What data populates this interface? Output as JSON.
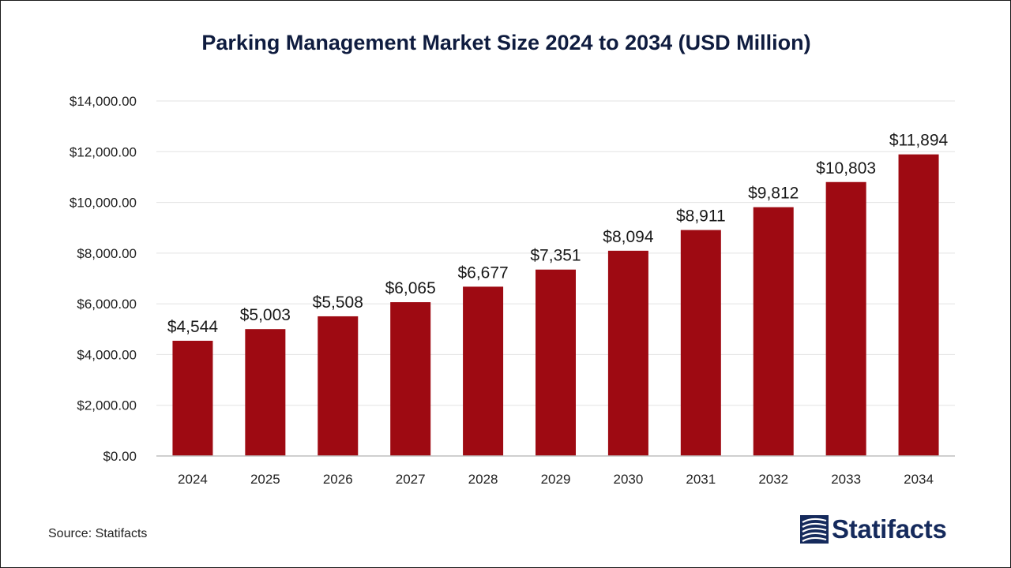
{
  "title": "Parking Management Market Size 2024 to 2034 (USD Million)",
  "source_text": "Source: Statifacts",
  "logo": {
    "text": "Statifacts",
    "icon": "statifacts-logo-icon",
    "color": "#152a5c"
  },
  "colors": {
    "bar": "#9e0a12",
    "title": "#0f1c3f",
    "gridline": "#e3e3e3",
    "axis": "#bfbfbf",
    "text": "#222222"
  },
  "chart_data": {
    "type": "bar",
    "title": "Parking Management Market Size 2024 to 2034 (USD Million)",
    "xlabel": "",
    "ylabel": "",
    "categories": [
      "2024",
      "2025",
      "2026",
      "2027",
      "2028",
      "2029",
      "2030",
      "2031",
      "2032",
      "2033",
      "2034"
    ],
    "values": [
      4544,
      5003,
      5508,
      6065,
      6677,
      7351,
      8094,
      8911,
      9812,
      10803,
      11894
    ],
    "data_labels": [
      "$4,544",
      "$5,003",
      "$5,508",
      "$6,065",
      "$6,677",
      "$7,351",
      "$8,094",
      "$8,911",
      "$9,812",
      "$10,803",
      "$11,894"
    ],
    "ylim": [
      0,
      14000
    ],
    "yticks": [
      0,
      2000,
      4000,
      6000,
      8000,
      10000,
      12000,
      14000
    ],
    "ytick_labels": [
      "$0.00",
      "$2,000.00",
      "$4,000.00",
      "$6,000.00",
      "$8,000.00",
      "$10,000.00",
      "$12,000.00",
      "$14,000.00"
    ],
    "grid": true,
    "legend": "none"
  }
}
